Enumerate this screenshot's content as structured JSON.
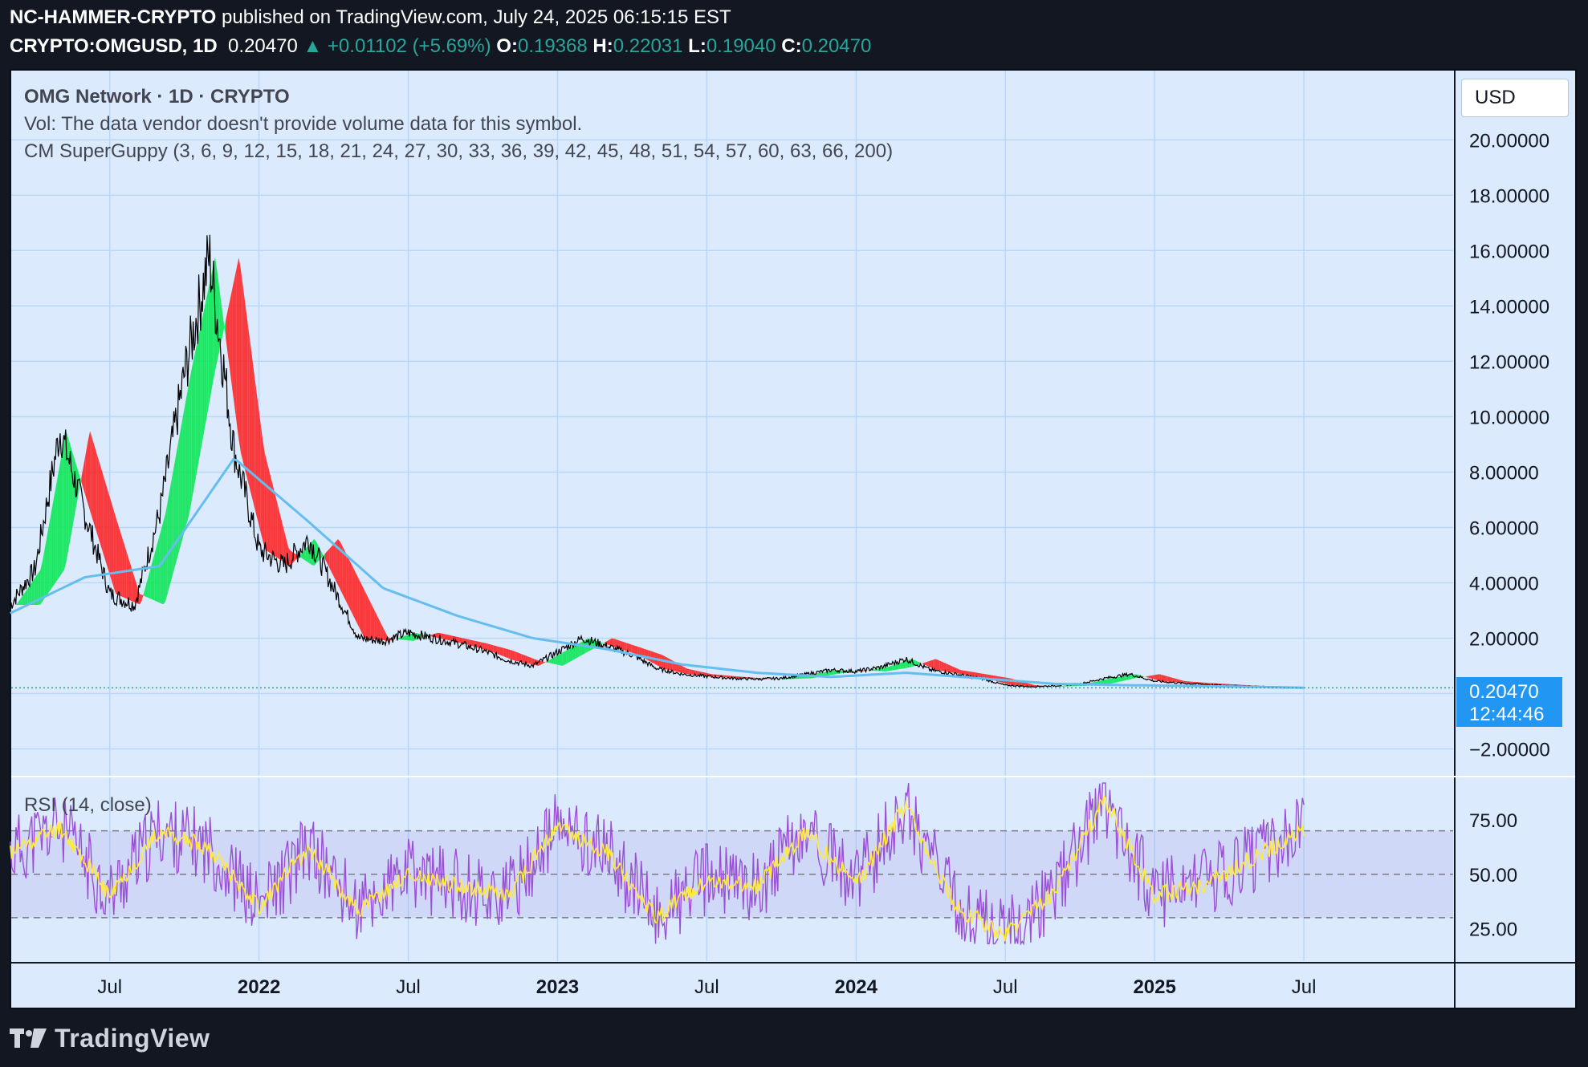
{
  "header": {
    "author": "NC-HAMMER-CRYPTO",
    "published_text": "published on TradingView.com, July 24, 2025 06:15:15 EST",
    "symbol": "CRYPTO:OMGUSD, 1D",
    "last": "0.20470",
    "change": "▲ +0.01102 (+5.69%)",
    "o_label": "O:",
    "o_val": "0.19368",
    "h_label": "H:",
    "h_val": "0.22031",
    "l_label": "L:",
    "l_val": "0.19040",
    "c_label": "C:",
    "c_val": "0.20470"
  },
  "legend": {
    "title": "OMG Network · 1D · CRYPTO",
    "vol": "Vol: The data vendor doesn't provide volume data for this symbol.",
    "guppy": "CM SuperGuppy (3, 6, 9, 12, 15, 18, 21, 24, 27, 30, 33, 36, 39, 42, 45, 48, 51, 54, 57, 60, 63, 66, 200)",
    "rsi": "RSI (14, close)"
  },
  "currency_button": "USD",
  "price_label": {
    "value": "0.20470",
    "countdown": "12:44:46"
  },
  "brand": "TradingView",
  "colors": {
    "background": "#131722",
    "pane": "#dbeafd",
    "grid": "#b9d6f6",
    "ema200": "#66bdf0",
    "bull": "#00e64d",
    "bear": "#ff1a1a",
    "rsi": "#9c4fd6",
    "rsi_ma": "#ffeb3b",
    "price_tag": "#2196f3"
  },
  "chart_data": [
    {
      "type": "line",
      "title": "OMG Network · 1D · CRYPTO",
      "series": [
        {
          "name": "OMGUSD close",
          "x": [
            "2021-03",
            "2021-04",
            "2021-05",
            "2021-06",
            "2021-07",
            "2021-08",
            "2021-09",
            "2021-10",
            "2021-11",
            "2021-12",
            "2022-01",
            "2022-02",
            "2022-03",
            "2022-04",
            "2022-05",
            "2022-06",
            "2022-07",
            "2022-08",
            "2022-09",
            "2022-10",
            "2022-11",
            "2022-12",
            "2023-01",
            "2023-02",
            "2023-03",
            "2023-04",
            "2023-05",
            "2023-06",
            "2023-07",
            "2023-08",
            "2023-09",
            "2023-10",
            "2023-11",
            "2023-12",
            "2024-01",
            "2024-02",
            "2024-03",
            "2024-04",
            "2024-05",
            "2024-06",
            "2024-07",
            "2024-08",
            "2024-09",
            "2024-10",
            "2024-11",
            "2024-12",
            "2025-01",
            "2025-02",
            "2025-03",
            "2025-04",
            "2025-05",
            "2025-06",
            "2025-07"
          ],
          "values": [
            3.2,
            4.5,
            9.5,
            6.5,
            3.6,
            3.2,
            6.5,
            11.5,
            15.8,
            8.8,
            5.2,
            4.6,
            5.6,
            3.8,
            2.0,
            1.9,
            2.2,
            2.0,
            1.8,
            1.55,
            1.2,
            1.0,
            1.5,
            2.0,
            1.7,
            1.4,
            0.9,
            0.7,
            0.62,
            0.55,
            0.52,
            0.55,
            0.7,
            0.85,
            0.8,
            0.95,
            1.25,
            0.85,
            0.7,
            0.55,
            0.3,
            0.25,
            0.28,
            0.35,
            0.55,
            0.7,
            0.45,
            0.38,
            0.33,
            0.28,
            0.26,
            0.22,
            0.2047
          ]
        },
        {
          "name": "EMA 200",
          "x": [
            "2021-03",
            "2021-06",
            "2021-09",
            "2021-12",
            "2022-03",
            "2022-06",
            "2022-09",
            "2022-12",
            "2023-03",
            "2023-06",
            "2023-09",
            "2023-12",
            "2024-03",
            "2024-06",
            "2024-09",
            "2024-12",
            "2025-03",
            "2025-07"
          ],
          "values": [
            2.9,
            4.2,
            4.6,
            8.5,
            6.2,
            3.8,
            2.8,
            2.0,
            1.6,
            1.05,
            0.75,
            0.6,
            0.75,
            0.55,
            0.35,
            0.3,
            0.27,
            0.21
          ]
        }
      ],
      "y_ticks": [
        "20.00000",
        "18.00000",
        "16.00000",
        "14.00000",
        "12.00000",
        "10.00000",
        "8.00000",
        "6.00000",
        "4.00000",
        "2.00000",
        "−2.00000"
      ],
      "ylim": [
        -3,
        22.5
      ],
      "x_ticks": [
        "Jul",
        "2022",
        "Jul",
        "2023",
        "Jul",
        "2024",
        "Jul",
        "2025",
        "Jul"
      ],
      "xlabel": "",
      "ylabel": "USD"
    },
    {
      "type": "line",
      "title": "RSI (14, close)",
      "series": [
        {
          "name": "RSI",
          "x": [
            "2021-03",
            "2021-05",
            "2021-07",
            "2021-09",
            "2021-11",
            "2022-01",
            "2022-03",
            "2022-05",
            "2022-07",
            "2022-09",
            "2022-11",
            "2023-01",
            "2023-03",
            "2023-05",
            "2023-07",
            "2023-09",
            "2023-11",
            "2024-01",
            "2024-03",
            "2024-05",
            "2024-07",
            "2024-09",
            "2024-11",
            "2025-01",
            "2025-03",
            "2025-05",
            "2025-07"
          ],
          "values": [
            60,
            72,
            40,
            70,
            62,
            35,
            62,
            33,
            50,
            45,
            40,
            72,
            60,
            30,
            48,
            44,
            70,
            45,
            82,
            35,
            22,
            42,
            85,
            40,
            45,
            58,
            70
          ]
        }
      ],
      "levels": [
        70,
        50,
        30
      ],
      "y_ticks": [
        "75.00",
        "50.00",
        "25.00"
      ],
      "ylim": [
        10,
        95
      ]
    }
  ]
}
